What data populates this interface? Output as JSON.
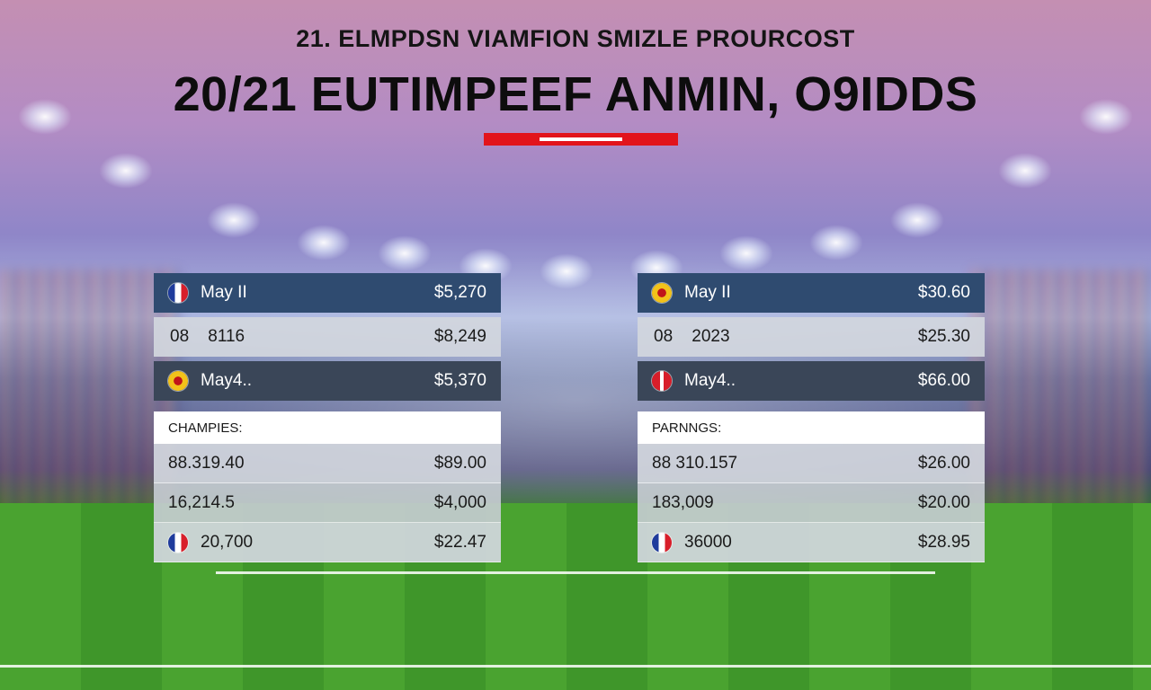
{
  "header": {
    "subtitle": "21. ELMPDSN VIAMFION SMIZLE PROURCOST",
    "title": "20/21 EUTIMPEEF ANMIN, O9IDDS"
  },
  "colors": {
    "accent": "#e2141b",
    "row_dark": "#2f4b70",
    "row_dark_alt": "#3a4658"
  },
  "left_table": {
    "top_rows": [
      {
        "icon": "french-flag-icon",
        "label": "May II",
        "value": "$5,270"
      },
      {
        "icon": "",
        "label": "08    8116",
        "value": "$8,249"
      },
      {
        "icon": "club-crest-icon",
        "label": "May4..",
        "value": "$5,370"
      }
    ],
    "section_header": "CHAMPIES:",
    "bottom_rows": [
      {
        "icon": "",
        "label": "88.319.40",
        "value": "$89.00"
      },
      {
        "icon": "",
        "label": "16,214.5",
        "value": "$4,000"
      },
      {
        "icon": "french-flag-icon",
        "label": "20,700",
        "value": "$22.47"
      }
    ]
  },
  "right_table": {
    "top_rows": [
      {
        "icon": "club-crest-icon",
        "label": "May II",
        "value": "$30.60"
      },
      {
        "icon": "",
        "label": "08    2023",
        "value": "$25.30"
      },
      {
        "icon": "red-flag-icon",
        "label": "May4..",
        "value": "$66.00"
      }
    ],
    "section_header": "PARNNGS:",
    "bottom_rows": [
      {
        "icon": "",
        "label": "88 310.157",
        "value": "$26.00"
      },
      {
        "icon": "",
        "label": "183,009",
        "value": "$20.00"
      },
      {
        "icon": "french-flag-icon",
        "label": "36000",
        "value": "$28.95"
      }
    ]
  }
}
